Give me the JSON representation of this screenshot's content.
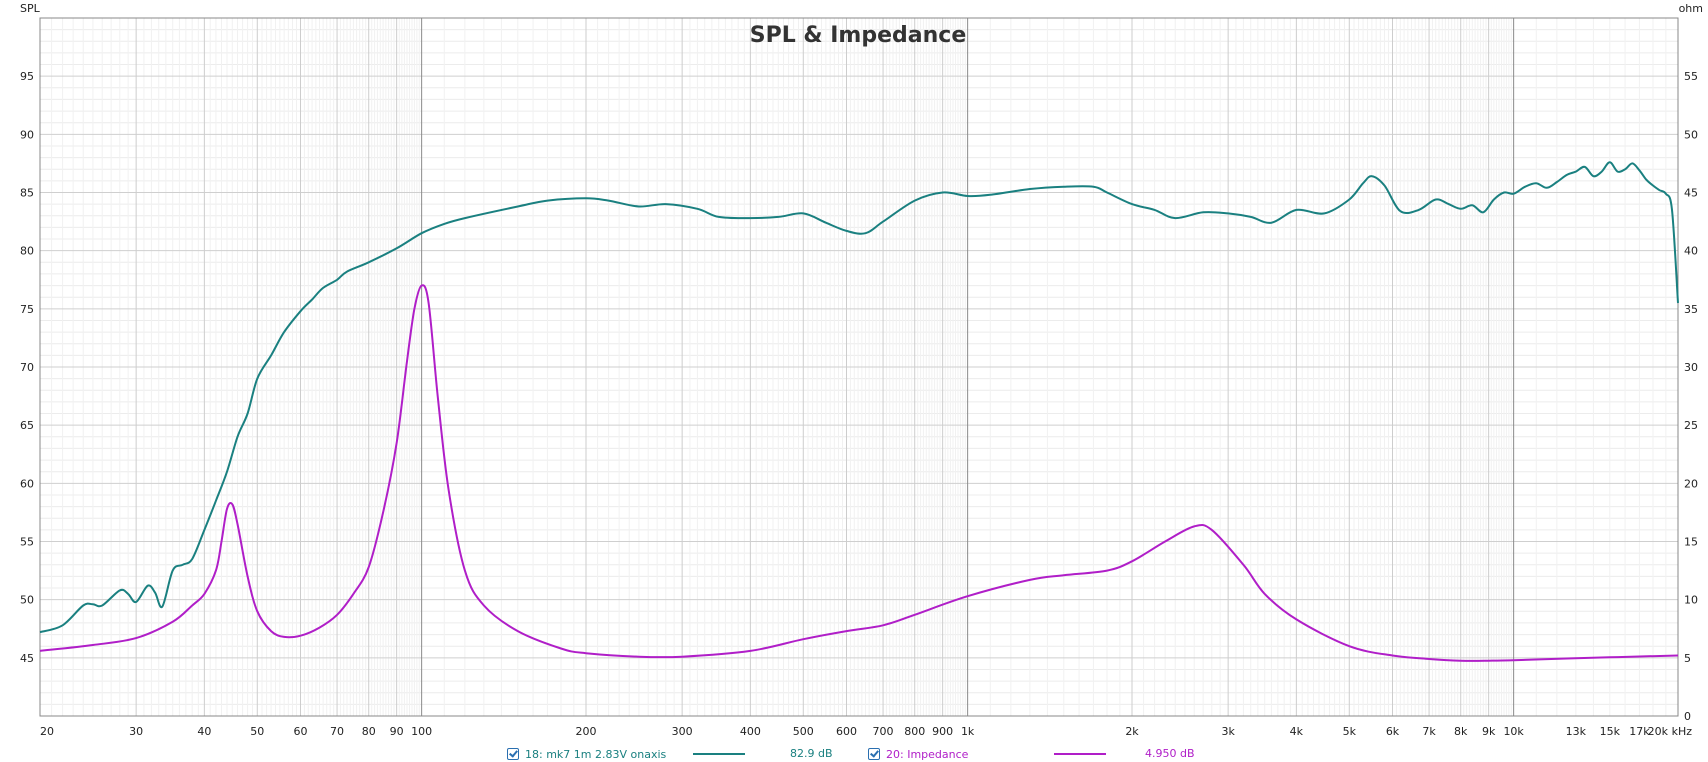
{
  "chart_data": {
    "type": "line",
    "title": "SPL & Impedance",
    "xscale": "log",
    "xlim": [
      20,
      20000
    ],
    "x_unit_label": "kHz",
    "x_ticks": [
      {
        "v": 20,
        "label": "20"
      },
      {
        "v": 30,
        "label": "30"
      },
      {
        "v": 40,
        "label": "40"
      },
      {
        "v": 50,
        "label": "50"
      },
      {
        "v": 60,
        "label": "60"
      },
      {
        "v": 70,
        "label": "70"
      },
      {
        "v": 80,
        "label": "80"
      },
      {
        "v": 90,
        "label": "90"
      },
      {
        "v": 100,
        "label": "100"
      },
      {
        "v": 200,
        "label": "200"
      },
      {
        "v": 300,
        "label": "300"
      },
      {
        "v": 400,
        "label": "400"
      },
      {
        "v": 500,
        "label": "500"
      },
      {
        "v": 600,
        "label": "600"
      },
      {
        "v": 700,
        "label": "700"
      },
      {
        "v": 800,
        "label": "800"
      },
      {
        "v": 900,
        "label": "900"
      },
      {
        "v": 1000,
        "label": "1k"
      },
      {
        "v": 2000,
        "label": "2k"
      },
      {
        "v": 3000,
        "label": "3k"
      },
      {
        "v": 4000,
        "label": "4k"
      },
      {
        "v": 5000,
        "label": "5k"
      },
      {
        "v": 6000,
        "label": "6k"
      },
      {
        "v": 7000,
        "label": "7k"
      },
      {
        "v": 8000,
        "label": "8k"
      },
      {
        "v": 9000,
        "label": "9k"
      },
      {
        "v": 10000,
        "label": "10k"
      },
      {
        "v": 13000,
        "label": "13k"
      },
      {
        "v": 15000,
        "label": "15k"
      },
      {
        "v": 17000,
        "label": "17k"
      },
      {
        "v": 20000,
        "label": "20k"
      }
    ],
    "left_axis": {
      "label": "SPL",
      "ylim": [
        40,
        100
      ],
      "ticks": [
        45,
        50,
        55,
        60,
        65,
        70,
        75,
        80,
        85,
        90,
        95
      ]
    },
    "right_axis": {
      "label": "ohm",
      "ylim": [
        0,
        60
      ],
      "ticks": [
        0,
        5,
        10,
        15,
        20,
        25,
        30,
        35,
        40,
        45,
        50,
        55
      ]
    },
    "grid": true,
    "legend_position": "bottom",
    "series": [
      {
        "name": "18: mk7 1m 2.83V onaxis",
        "axis": "left",
        "color": "#1a8080",
        "value_label": "82.9 dB",
        "points": [
          [
            20,
            47.2
          ],
          [
            22,
            47.8
          ],
          [
            24,
            49.5
          ],
          [
            25,
            49.6
          ],
          [
            26,
            49.5
          ],
          [
            28,
            50.8
          ],
          [
            29,
            50.5
          ],
          [
            30,
            49.8
          ],
          [
            31.5,
            51.2
          ],
          [
            32.5,
            50.6
          ],
          [
            33.5,
            49.4
          ],
          [
            35,
            52.5
          ],
          [
            36.5,
            53.0
          ],
          [
            38,
            53.5
          ],
          [
            40,
            56.0
          ],
          [
            42,
            58.5
          ],
          [
            44,
            61.0
          ],
          [
            46,
            64.0
          ],
          [
            48,
            66.0
          ],
          [
            50,
            69.0
          ],
          [
            53,
            71.0
          ],
          [
            56,
            73.0
          ],
          [
            60,
            74.8
          ],
          [
            63,
            75.8
          ],
          [
            66,
            76.8
          ],
          [
            70,
            77.5
          ],
          [
            73,
            78.2
          ],
          [
            80,
            79.0
          ],
          [
            90,
            80.2
          ],
          [
            100,
            81.5
          ],
          [
            110,
            82.3
          ],
          [
            120,
            82.8
          ],
          [
            150,
            83.8
          ],
          [
            170,
            84.3
          ],
          [
            200,
            84.5
          ],
          [
            220,
            84.3
          ],
          [
            250,
            83.8
          ],
          [
            280,
            84.0
          ],
          [
            320,
            83.6
          ],
          [
            350,
            82.9
          ],
          [
            400,
            82.8
          ],
          [
            450,
            82.9
          ],
          [
            500,
            83.2
          ],
          [
            550,
            82.4
          ],
          [
            600,
            81.7
          ],
          [
            650,
            81.5
          ],
          [
            700,
            82.5
          ],
          [
            800,
            84.3
          ],
          [
            900,
            85.0
          ],
          [
            1000,
            84.7
          ],
          [
            1100,
            84.8
          ],
          [
            1300,
            85.3
          ],
          [
            1500,
            85.5
          ],
          [
            1700,
            85.5
          ],
          [
            1800,
            85.0
          ],
          [
            2000,
            84.0
          ],
          [
            2200,
            83.5
          ],
          [
            2400,
            82.8
          ],
          [
            2700,
            83.3
          ],
          [
            3000,
            83.2
          ],
          [
            3300,
            82.9
          ],
          [
            3600,
            82.4
          ],
          [
            4000,
            83.5
          ],
          [
            4500,
            83.2
          ],
          [
            5000,
            84.4
          ],
          [
            5300,
            85.8
          ],
          [
            5500,
            86.4
          ],
          [
            5800,
            85.6
          ],
          [
            6200,
            83.4
          ],
          [
            6700,
            83.5
          ],
          [
            7200,
            84.4
          ],
          [
            7600,
            84.0
          ],
          [
            8000,
            83.6
          ],
          [
            8400,
            83.9
          ],
          [
            8800,
            83.3
          ],
          [
            9200,
            84.4
          ],
          [
            9600,
            85.0
          ],
          [
            10000,
            84.9
          ],
          [
            10500,
            85.5
          ],
          [
            11000,
            85.8
          ],
          [
            11500,
            85.4
          ],
          [
            12000,
            85.9
          ],
          [
            12500,
            86.5
          ],
          [
            13000,
            86.8
          ],
          [
            13500,
            87.2
          ],
          [
            14000,
            86.4
          ],
          [
            14500,
            86.8
          ],
          [
            15000,
            87.6
          ],
          [
            15500,
            86.8
          ],
          [
            16000,
            87.0
          ],
          [
            16500,
            87.5
          ],
          [
            17000,
            86.9
          ],
          [
            17500,
            86.1
          ],
          [
            18000,
            85.6
          ],
          [
            18500,
            85.2
          ],
          [
            19000,
            84.9
          ],
          [
            19500,
            83.5
          ],
          [
            20000,
            75.5
          ]
        ]
      },
      {
        "name": "20: Impedance",
        "axis": "right",
        "color": "#b01ec8",
        "value_label": "4.950 dB",
        "points": [
          [
            20,
            5.6
          ],
          [
            25,
            6.1
          ],
          [
            30,
            6.7
          ],
          [
            35,
            8.1
          ],
          [
            38,
            9.5
          ],
          [
            40,
            10.5
          ],
          [
            42,
            12.5
          ],
          [
            43,
            15.0
          ],
          [
            44,
            17.8
          ],
          [
            45,
            18.2
          ],
          [
            46,
            16.5
          ],
          [
            48,
            12.0
          ],
          [
            50,
            9.0
          ],
          [
            53,
            7.3
          ],
          [
            56,
            6.8
          ],
          [
            60,
            6.9
          ],
          [
            65,
            7.6
          ],
          [
            70,
            8.7
          ],
          [
            75,
            10.5
          ],
          [
            80,
            12.8
          ],
          [
            85,
            17.5
          ],
          [
            90,
            23.5
          ],
          [
            94,
            30.5
          ],
          [
            97,
            35.0
          ],
          [
            100,
            37.0
          ],
          [
            103,
            35.5
          ],
          [
            107,
            27.5
          ],
          [
            112,
            19.5
          ],
          [
            120,
            12.5
          ],
          [
            130,
            9.5
          ],
          [
            150,
            7.3
          ],
          [
            180,
            5.8
          ],
          [
            200,
            5.4
          ],
          [
            250,
            5.1
          ],
          [
            300,
            5.1
          ],
          [
            400,
            5.6
          ],
          [
            500,
            6.6
          ],
          [
            600,
            7.3
          ],
          [
            700,
            7.8
          ],
          [
            800,
            8.7
          ],
          [
            1000,
            10.3
          ],
          [
            1300,
            11.7
          ],
          [
            1500,
            12.1
          ],
          [
            1800,
            12.5
          ],
          [
            2000,
            13.3
          ],
          [
            2300,
            15.0
          ],
          [
            2600,
            16.3
          ],
          [
            2800,
            16.0
          ],
          [
            3200,
            13.0
          ],
          [
            3500,
            10.5
          ],
          [
            4000,
            8.3
          ],
          [
            5000,
            6.0
          ],
          [
            6000,
            5.2
          ],
          [
            7000,
            4.9
          ],
          [
            8000,
            4.75
          ],
          [
            9000,
            4.75
          ],
          [
            10000,
            4.8
          ],
          [
            15000,
            5.05
          ],
          [
            20000,
            5.2
          ]
        ]
      }
    ]
  },
  "legend": {
    "spl": {
      "label": "18: mk7 1m 2.83V onaxis",
      "value": "82.9 dB",
      "color": "#1a8080"
    },
    "imp": {
      "label": "20: Impedance",
      "value": "4.950 dB",
      "color": "#b01ec8"
    }
  }
}
